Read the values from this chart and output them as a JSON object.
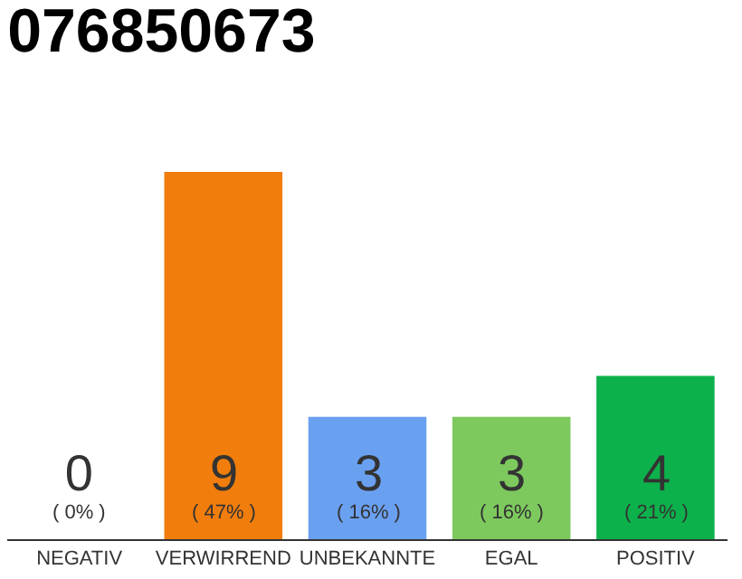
{
  "chart_data": {
    "type": "bar",
    "title": "076850673",
    "categories": [
      "NEGATIV",
      "VERWIRREND",
      "UNBEKANNTE",
      "EGAL",
      "POSITIV"
    ],
    "values": [
      0,
      9,
      3,
      3,
      4
    ],
    "colors": [
      "#c8c8c8",
      "#f07d0c",
      "#6aa0f0",
      "#7dc95e",
      "#0db14b"
    ],
    "value_labels": [
      "0\n( 0% )",
      "9\n( 47% )",
      "3\n( 16% )",
      "3\n( 16% )",
      "4\n( 21% )"
    ],
    "ylim": [
      0,
      9
    ]
  }
}
